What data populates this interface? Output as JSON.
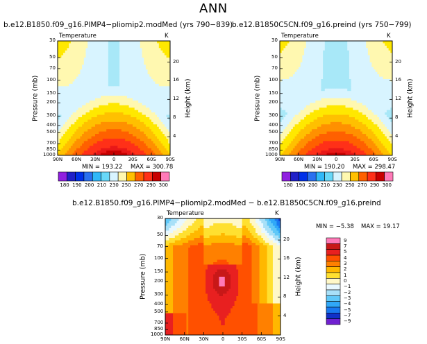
{
  "figure": {
    "super_title": "ANN"
  },
  "chart_data": [
    {
      "type": "heatmap",
      "title": "b.e12.B1850.f09_g16.PlMP4−pliomip2.modMed (yrs 790−839)",
      "variable": "Temperature",
      "units": "K",
      "min_label": "MIN = 193.22",
      "max_label": "MAX = 300.78",
      "min": 193.22,
      "max": 300.78,
      "x_ticks": [
        "90N",
        "60N",
        "30N",
        "0",
        "30S",
        "60S",
        "90S"
      ],
      "y_label": "Pressure (mb)",
      "y_ticks": [
        "30",
        "50",
        "70",
        "100",
        "150",
        "200",
        "300",
        "400",
        "500",
        "700",
        "850",
        "1000"
      ],
      "right_label": "Height (km)",
      "right_ticks": [
        "20",
        "16",
        "12",
        "8",
        "4"
      ],
      "colorbar": [
        180,
        190,
        200,
        210,
        230,
        250,
        270,
        290,
        300
      ],
      "field": "pliomip_temperature"
    },
    {
      "type": "heatmap",
      "title": "b.e12.B1850C5CN.f09_g16.preind (yrs 750−799)",
      "variable": "Temperature",
      "units": "K",
      "min_label": "MIN = 190.20",
      "max_label": "MAX = 298.47",
      "min": 190.2,
      "max": 298.47,
      "x_ticks": [
        "90N",
        "60N",
        "30N",
        "0",
        "30S",
        "60S",
        "90S"
      ],
      "y_label": "Pressure (mb)",
      "y_ticks": [
        "30",
        "50",
        "70",
        "100",
        "150",
        "200",
        "300",
        "400",
        "500",
        "700",
        "850",
        "1000"
      ],
      "right_label": "Height (km)",
      "right_ticks": [
        "20",
        "16",
        "12",
        "8",
        "4"
      ],
      "colorbar": [
        180,
        190,
        200,
        210,
        230,
        250,
        270,
        290,
        300
      ],
      "field": "preind_temperature"
    },
    {
      "type": "heatmap",
      "title": "b.e12.B1850.f09_g16.PlMP4−pliomip2.modMed − b.e12.B1850C5CN.f09_g16.preind",
      "variable": "Temperature",
      "units": "K",
      "min_label": "MIN =   −5.38",
      "max_label": "MAX =   19.17",
      "min": -5.38,
      "max": 19.17,
      "x_ticks": [
        "90N",
        "60N",
        "30N",
        "0",
        "30S",
        "60S",
        "90S"
      ],
      "y_label": "Pressure (mb)",
      "y_ticks": [
        "30",
        "50",
        "70",
        "100",
        "150",
        "200",
        "300",
        "400",
        "500",
        "700",
        "850",
        "1000"
      ],
      "right_label": "Height (km)",
      "right_ticks": [
        "20",
        "16",
        "12",
        "8",
        "4"
      ],
      "colorbar": [
        "9",
        "7",
        "5",
        "4",
        "3",
        "2",
        "1",
        "0",
        "−1",
        "−2",
        "−3",
        "−4",
        "−5",
        "−7",
        "−9"
      ],
      "field": "temperature_difference"
    }
  ],
  "colors": {
    "abs_scale": [
      "#9020e0",
      "#2020c8",
      "#0030e8",
      "#2a70f0",
      "#2898f8",
      "#30b8f8",
      "#48c8f8",
      "#68d8f8",
      "#a8e8f8",
      "#d8f4ff",
      "#fff8b0",
      "#ffe800",
      "#ffc000",
      "#ff9000",
      "#ff6000",
      "#ff3018",
      "#e81818",
      "#c80000",
      "#a00000",
      "#ff7ab8"
    ],
    "diff_scale": [
      "#ff7ab8",
      "#c81818",
      "#e82020",
      "#ff5000",
      "#ff8000",
      "#ffb800",
      "#ffe030",
      "#fff8c8",
      "#e8f8ff",
      "#a8e0f8",
      "#60c8f8",
      "#30a8f8",
      "#1878f0",
      "#1030c8",
      "#7020d0"
    ]
  }
}
